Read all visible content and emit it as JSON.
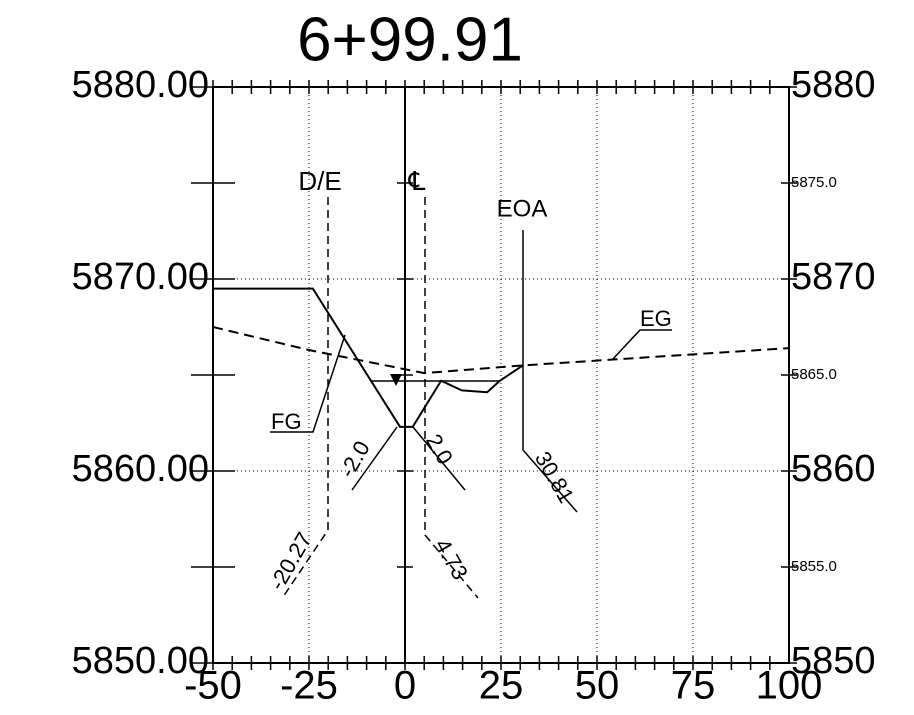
{
  "chart_data": {
    "type": "line",
    "title": "6+99.91",
    "xlim": [
      -50,
      100
    ],
    "xticks": [
      -50,
      -25,
      0,
      25,
      50,
      75,
      100
    ],
    "ylim": [
      5850,
      5880
    ],
    "yticks": [
      {
        "value": 5850,
        "label": "5850.00"
      },
      {
        "value": 5860,
        "label": "5860.00"
      },
      {
        "value": 5870,
        "label": "5870.00"
      },
      {
        "value": 5880,
        "label": "5880.00"
      }
    ],
    "y2lim": [
      5850,
      5880
    ],
    "y2ticks": [
      5850,
      {
        "value": 5855,
        "label": "5855.0"
      },
      5860,
      {
        "value": 5865,
        "label": "5865.0"
      },
      5870,
      {
        "value": 5875,
        "label": "5875.0"
      },
      5880
    ],
    "grid": true,
    "series": [
      {
        "name": "FG",
        "color": "#000000",
        "dash": false,
        "x": [
          -50,
          -24,
          -1.3,
          2,
          9.4,
          14.8,
          21.4,
          24.7,
          30.7
        ],
        "values": [
          5869.5,
          5869.5,
          5862.3,
          5862.3,
          5864.7,
          5864.2,
          5864.1,
          5864.7,
          5865.5
        ]
      },
      {
        "name": "EG",
        "color": "#000000",
        "dash": true,
        "x": [
          -50,
          -25,
          5,
          30.7,
          100
        ],
        "values": [
          5867.5,
          5866.3,
          5865.1,
          5865.5,
          5866.4
        ]
      }
    ],
    "annotations": [
      "D/E",
      "℄",
      "EOA",
      "-2.0",
      "2.0",
      "30.81",
      "4.73",
      "-20.27"
    ]
  }
}
